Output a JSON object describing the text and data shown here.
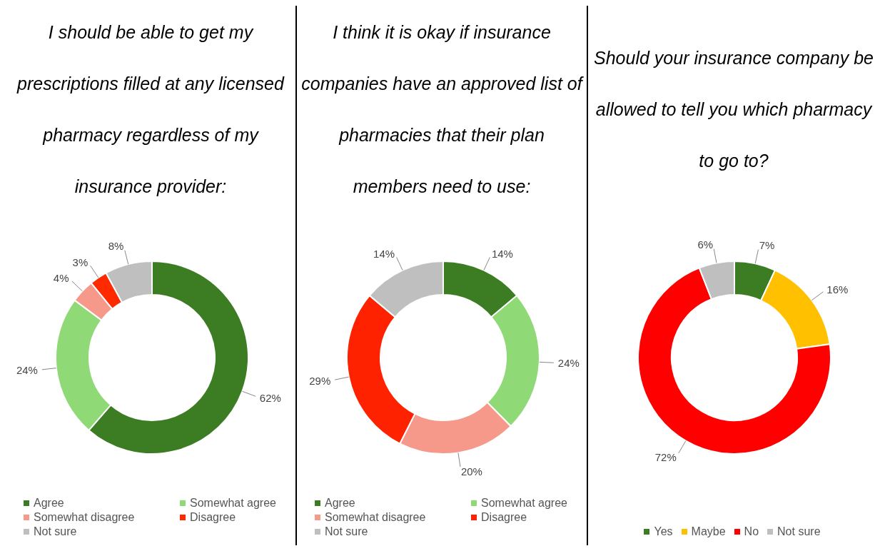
{
  "chart_data": [
    {
      "type": "donut",
      "title": "I should be able to get my prescriptions filled at any licensed pharmacy regardless of my insurance provider:",
      "categories": [
        "Agree",
        "Somewhat agree",
        "Somewhat disagree",
        "Disagree",
        "Not sure"
      ],
      "values": [
        62,
        24,
        4,
        3,
        8
      ],
      "colors": [
        "#3c7d23",
        "#8fd977",
        "#f6998a",
        "#ff2a00",
        "#bfbfbf"
      ],
      "value_labels": [
        "62%",
        "24%",
        "4%",
        "3%",
        "8%"
      ],
      "legend": "bottom"
    },
    {
      "type": "donut",
      "title": "I think it is okay if insurance companies have an approved list of pharmacies that their plan members need to use:",
      "categories": [
        "Agree",
        "Somewhat agree",
        "Somewhat disagree",
        "Disagree",
        "Not sure"
      ],
      "values": [
        14,
        24,
        20,
        29,
        14
      ],
      "colors": [
        "#3c7d23",
        "#8fd977",
        "#f6998a",
        "#ff2200",
        "#bfbfbf"
      ],
      "value_labels": [
        "14%",
        "24%",
        "20%",
        "29%",
        "14%"
      ],
      "legend": "bottom"
    },
    {
      "type": "donut",
      "title": "Should your insurance company be allowed to tell you which pharmacy to go to?",
      "categories": [
        "Yes",
        "Maybe",
        "No",
        "Not sure"
      ],
      "values": [
        7,
        16,
        72,
        6
      ],
      "colors": [
        "#3c7d23",
        "#ffc000",
        "#ff0000",
        "#bfbfbf"
      ],
      "value_labels": [
        "7%",
        "16%",
        "72%",
        "6%"
      ],
      "legend": "bottom"
    }
  ]
}
